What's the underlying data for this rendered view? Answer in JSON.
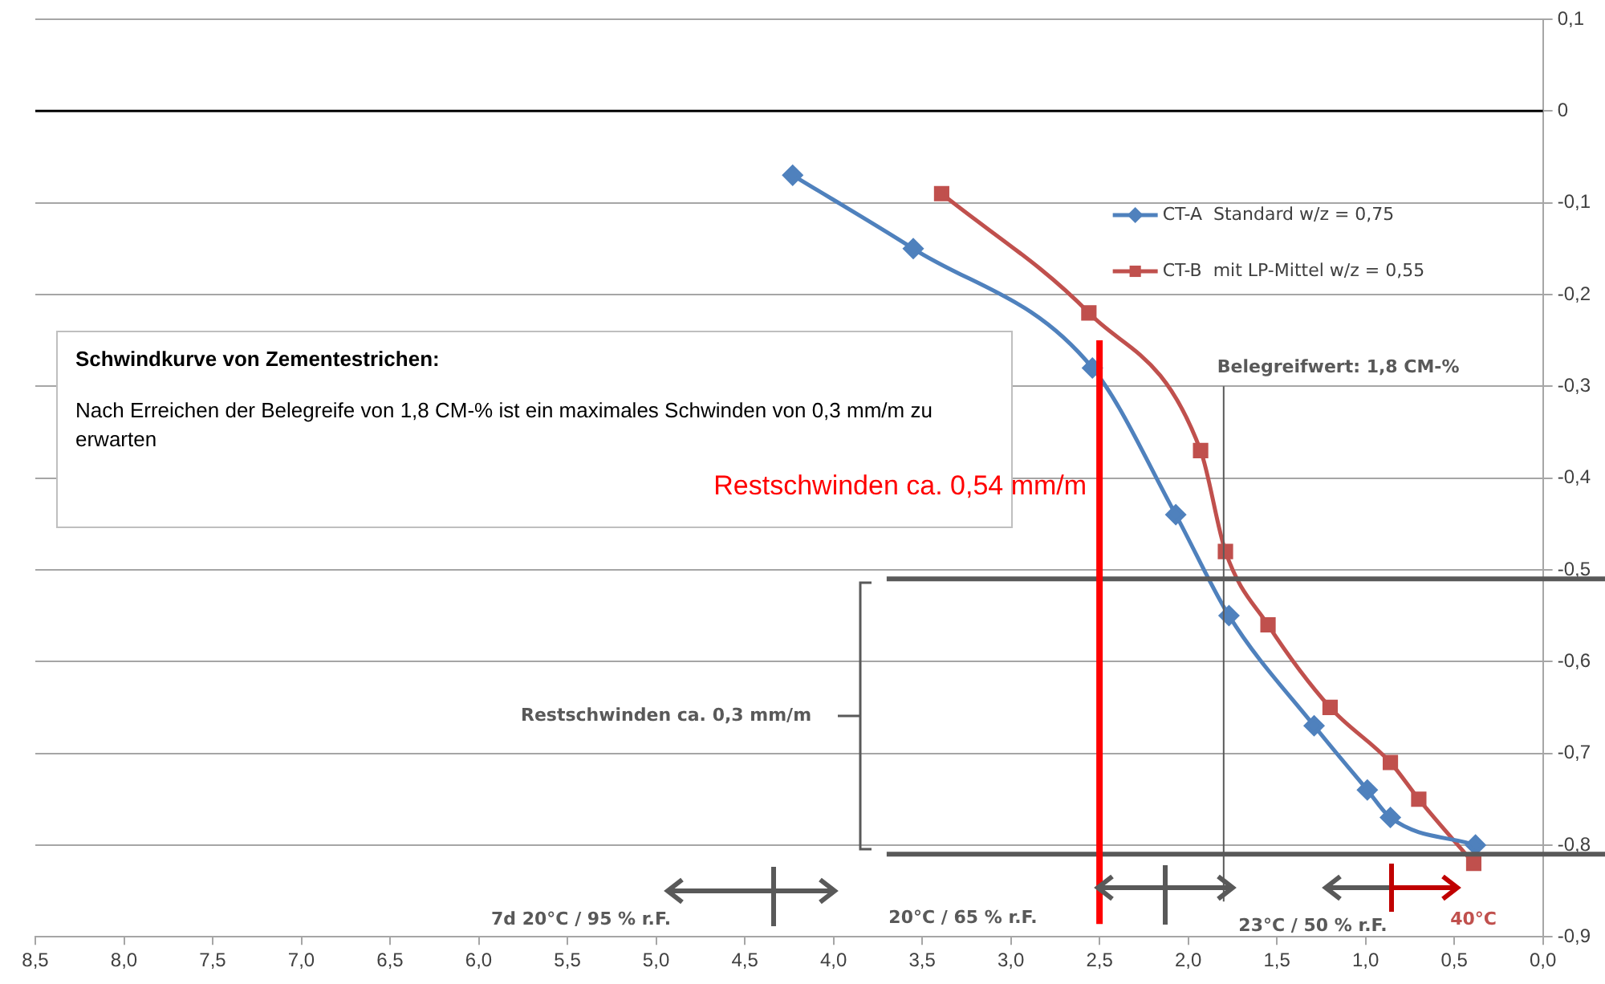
{
  "chart_data": {
    "type": "line",
    "title": "Schwindkurve von Zementestrichen:",
    "subtitle": "Nach Erreichen der Belegreife von 1,8 CM-% ist ein maximales Schwinden von 0,3 mm/m zu erwarten",
    "series": [
      {
        "name": "CT-A  Standard w/z = 0,75",
        "color": "#4f81bd",
        "marker": "diamond",
        "x": [
          4.23,
          3.55,
          2.54,
          2.07,
          1.77,
          1.29,
          0.99,
          0.86,
          0.38
        ],
        "values": [
          -0.07,
          -0.15,
          -0.28,
          -0.44,
          -0.55,
          -0.67,
          -0.74,
          -0.77,
          -0.8
        ]
      },
      {
        "name": "CT-B  mit LP-Mittel w/z = 0,55",
        "color": "#c0504d",
        "marker": "square",
        "x": [
          3.39,
          2.56,
          1.93,
          1.79,
          1.55,
          1.2,
          0.86,
          0.7,
          0.39
        ],
        "values": [
          -0.09,
          -0.22,
          -0.37,
          -0.48,
          -0.56,
          -0.65,
          -0.71,
          -0.75,
          -0.82
        ]
      }
    ],
    "xlim": [
      8.5,
      0
    ],
    "xticks": [
      {
        "value": 8.5,
        "label": "8,5"
      },
      {
        "value": 8,
        "label": "8,0"
      },
      {
        "value": 7.5,
        "label": "7,5"
      },
      {
        "value": 7,
        "label": "7,0"
      },
      {
        "value": 6.5,
        "label": "6,5"
      },
      {
        "value": 6,
        "label": "6,0"
      },
      {
        "value": 5.5,
        "label": "5,5"
      },
      {
        "value": 5,
        "label": "5,0"
      },
      {
        "value": 4.5,
        "label": "4,5"
      },
      {
        "value": 4,
        "label": "4,0"
      },
      {
        "value": 3.5,
        "label": "3,5"
      },
      {
        "value": 3,
        "label": "3,0"
      },
      {
        "value": 2.5,
        "label": "2,5"
      },
      {
        "value": 2,
        "label": "2,0"
      },
      {
        "value": 1.5,
        "label": "1,5"
      },
      {
        "value": 1,
        "label": "1,0"
      },
      {
        "value": 0.5,
        "label": "0,5"
      },
      {
        "value": 0,
        "label": "0,0"
      }
    ],
    "ylim": [
      -0.9,
      0.1
    ],
    "yticks": [
      {
        "value": -0.9,
        "label": "-0,9"
      },
      {
        "value": -0.8,
        "label": "-0,8"
      },
      {
        "value": -0.7,
        "label": "-0,7"
      },
      {
        "value": -0.6,
        "label": "-0,6"
      },
      {
        "value": -0.5,
        "label": "-0,5"
      },
      {
        "value": -0.4,
        "label": "-0,4"
      },
      {
        "value": -0.3,
        "label": "-0,3"
      },
      {
        "value": -0.2,
        "label": "-0,2"
      },
      {
        "value": -0.1,
        "label": "-0,1"
      },
      0,
      {
        "value": 0.1,
        "label": "0,1"
      }
    ],
    "grid": "y",
    "legend": "top right",
    "line_style": "solid",
    "ref_lines": [
      {
        "axis": "y",
        "value": 0,
        "color": "#000000"
      },
      {
        "axis": "y",
        "value": -0.51,
        "color": "#595959"
      },
      {
        "axis": "y",
        "value": -0.81,
        "color": "#595959"
      },
      {
        "axis": "x",
        "value": 2.5,
        "color": "#ff0000",
        "label": "Restschwinden ca. 0,54 mm/m"
      },
      {
        "axis": "x",
        "value": 1.8,
        "color": "#595959",
        "label": "Belegreifwert: 1,8 CM-%"
      }
    ],
    "annotations": [
      "Restschwinden ca. 0,3 mm/m",
      "7d 20°C / 95 % r.F.",
      "20°C / 65 % r.F.",
      "23°C / 50 % r.F.",
      "40°C"
    ]
  }
}
